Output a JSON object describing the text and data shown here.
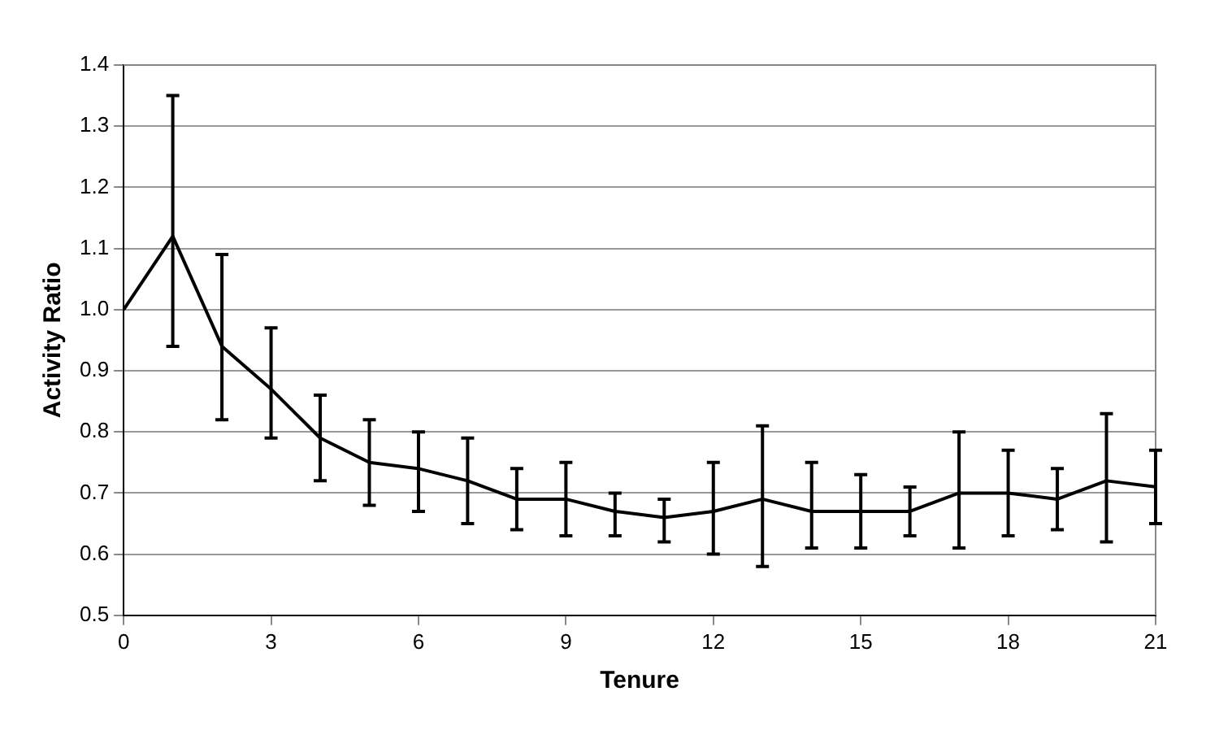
{
  "chart_data": {
    "type": "line",
    "xlabel": "Tenure",
    "ylabel": "Activity Ratio",
    "x": [
      0,
      1,
      2,
      3,
      4,
      5,
      6,
      7,
      8,
      9,
      10,
      11,
      12,
      13,
      14,
      15,
      16,
      17,
      18,
      19,
      20,
      21
    ],
    "series": [
      {
        "color": "#000000",
        "values": [
          1.0,
          1.12,
          0.94,
          0.87,
          0.79,
          0.75,
          0.74,
          0.72,
          0.69,
          0.69,
          0.67,
          0.66,
          0.67,
          0.69,
          0.67,
          0.67,
          0.67,
          0.7,
          0.7,
          0.69,
          0.72,
          0.71
        ],
        "errors": [
          null,
          [
            0.94,
            1.35
          ],
          [
            0.82,
            1.09
          ],
          [
            0.79,
            0.97
          ],
          [
            0.72,
            0.86
          ],
          [
            0.68,
            0.82
          ],
          [
            0.67,
            0.8
          ],
          [
            0.65,
            0.79
          ],
          [
            0.64,
            0.74
          ],
          [
            0.63,
            0.75
          ],
          [
            0.63,
            0.7
          ],
          [
            0.62,
            0.69
          ],
          [
            0.6,
            0.75
          ],
          [
            0.58,
            0.81
          ],
          [
            0.61,
            0.75
          ],
          [
            0.61,
            0.73
          ],
          [
            0.63,
            0.71
          ],
          [
            0.61,
            0.8
          ],
          [
            0.63,
            0.77
          ],
          [
            0.64,
            0.74
          ],
          [
            0.62,
            0.83
          ],
          [
            0.65,
            0.77
          ]
        ]
      }
    ],
    "xlim": [
      0,
      21
    ],
    "xticks": [
      0,
      3,
      6,
      9,
      12,
      15,
      18,
      21
    ],
    "ylim": [
      0.5,
      1.4
    ],
    "yticks": [
      {
        "value": 0.5,
        "label": "0.5"
      },
      {
        "value": 0.6,
        "label": "0.6"
      },
      {
        "value": 0.7,
        "label": "0.7"
      },
      {
        "value": 0.8,
        "label": "0.8"
      },
      {
        "value": 0.9,
        "label": "0.9"
      },
      {
        "value": 1.0,
        "label": "1.0"
      },
      {
        "value": 1.1,
        "label": "1.1"
      },
      {
        "value": 1.2,
        "label": "1.2"
      },
      {
        "value": 1.3,
        "label": "1.3"
      },
      {
        "value": 1.4,
        "label": "1.4"
      }
    ],
    "grid": "y",
    "legend": false,
    "marker": "none",
    "line_style": "solid"
  }
}
